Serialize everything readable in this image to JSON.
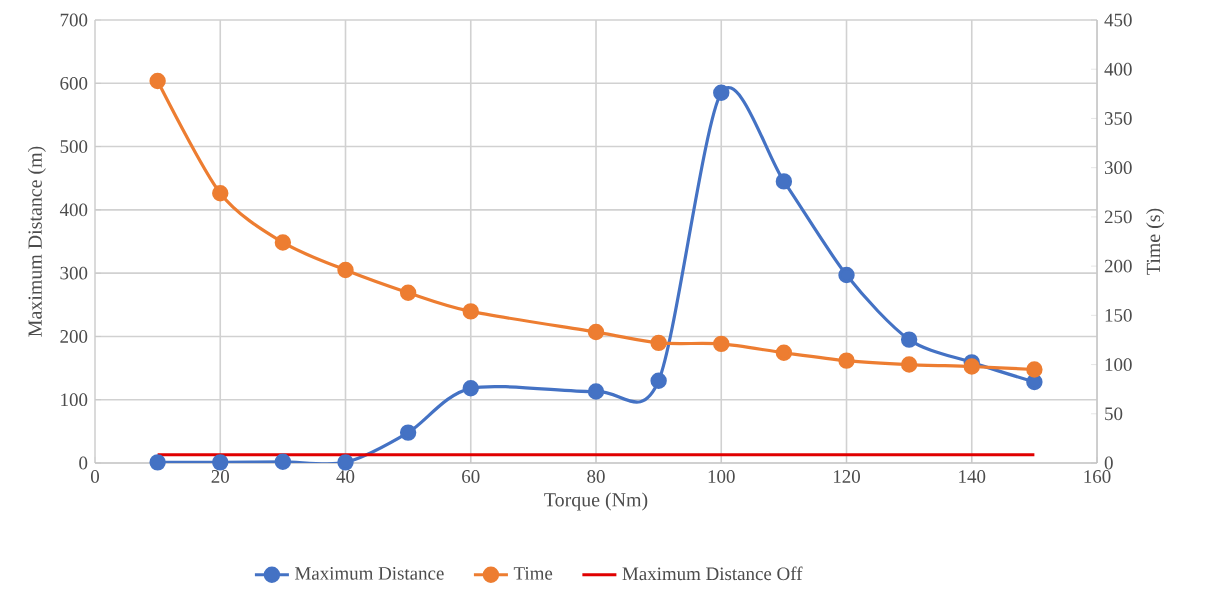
{
  "chart_data": {
    "type": "line",
    "xlabel": "Torque (Nm)",
    "ylabel": "Maximum Distance (m)",
    "y2label": "Time (s)",
    "x": [
      10,
      20,
      30,
      40,
      50,
      60,
      80,
      90,
      100,
      110,
      120,
      130,
      140,
      150
    ],
    "series": [
      {
        "name": "Maximum Distance",
        "color": "#4472c4",
        "values": [
          1,
          1,
          2,
          1,
          48,
          118,
          113,
          130,
          585,
          445,
          297,
          195,
          159,
          128
        ]
      },
      {
        "name": "Time",
        "color": "#ed7d31",
        "axis": "y2",
        "values": [
          388,
          274,
          224,
          196,
          173,
          154,
          133,
          122,
          121,
          112,
          104,
          100,
          98,
          95
        ]
      },
      {
        "name": "Maximum Distance Off",
        "color": "#e00000",
        "marker": "none",
        "x": [
          10,
          150
        ],
        "values": [
          13,
          13
        ]
      }
    ],
    "marker": "circle",
    "xlim": [
      0,
      160
    ],
    "xticks": [
      0,
      20,
      40,
      60,
      80,
      100,
      120,
      140,
      160
    ],
    "ylim": [
      0,
      700
    ],
    "yticks": [
      0,
      100,
      200,
      300,
      400,
      500,
      600,
      700
    ],
    "y2lim": [
      0,
      450
    ],
    "y2ticks": [
      0,
      50,
      100,
      150,
      200,
      250,
      300,
      350,
      400,
      450
    ],
    "grid": true,
    "legend": "bottom"
  }
}
